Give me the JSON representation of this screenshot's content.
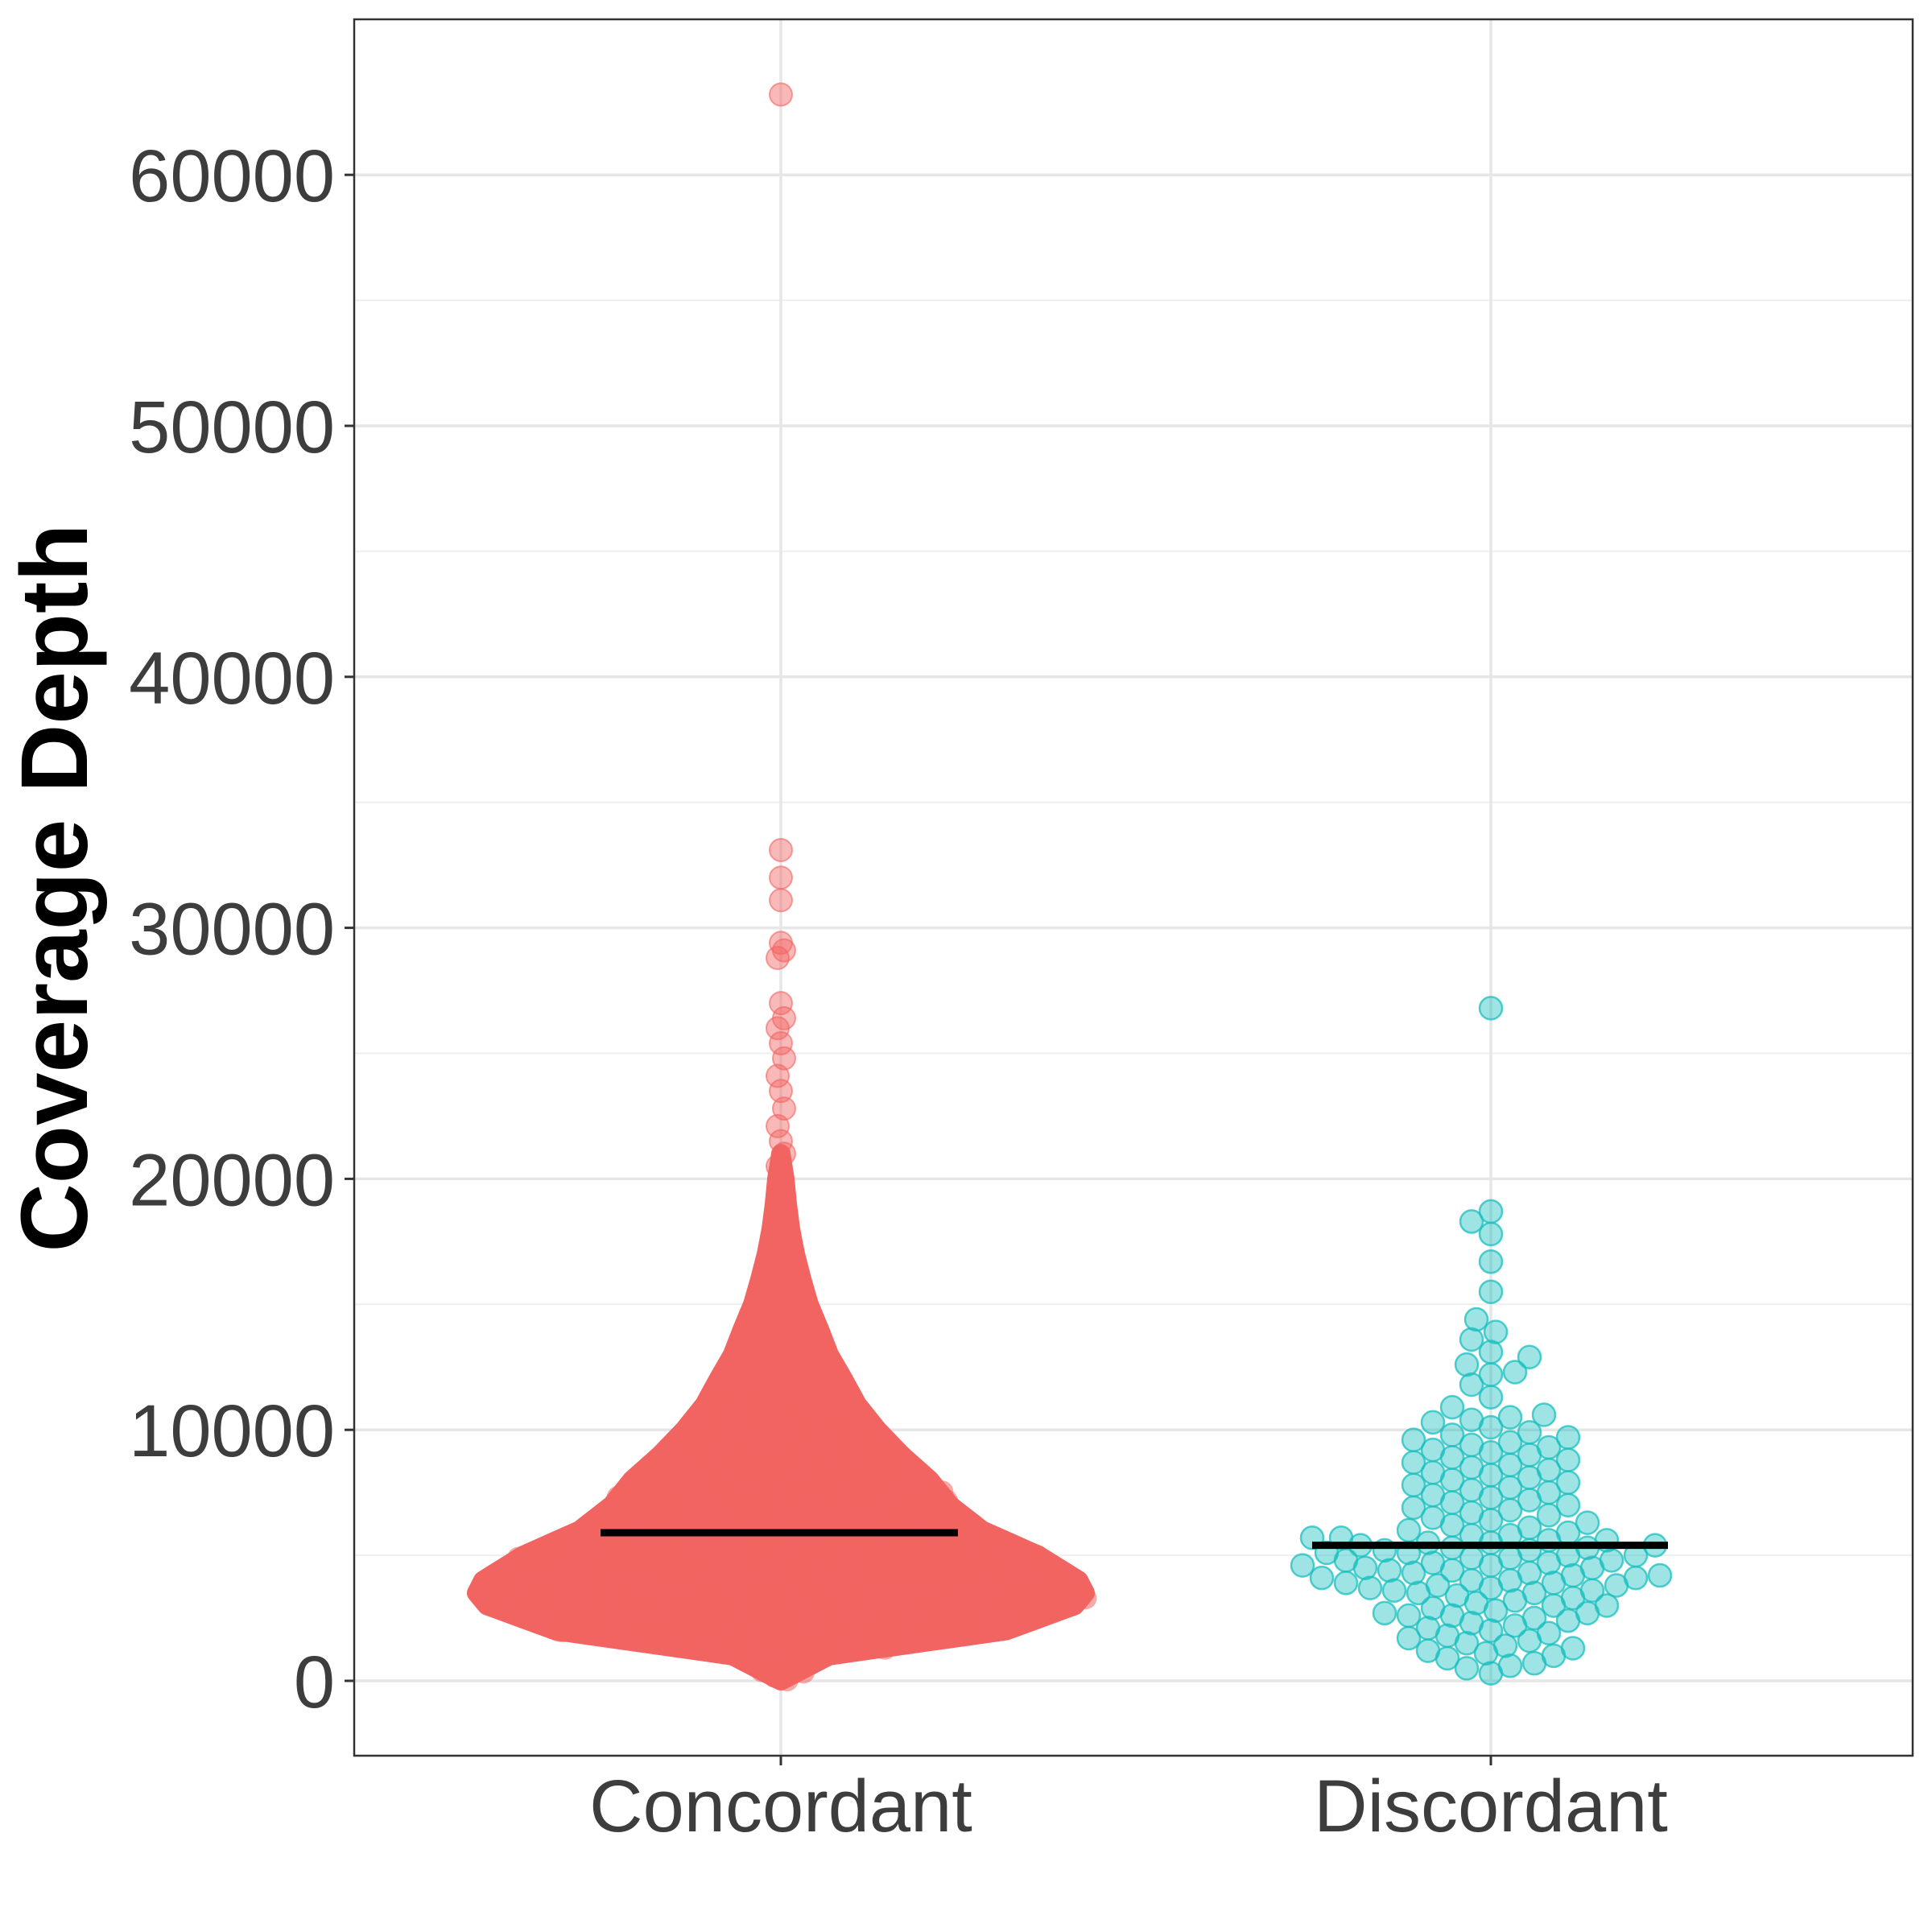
{
  "chart_data": {
    "type": "scatter",
    "subtype": "beeswarm",
    "title": "",
    "xlabel": "",
    "ylabel": "Coverage Depth",
    "ylim": [
      -3000,
      66000
    ],
    "yticks": [
      0,
      10000,
      20000,
      30000,
      40000,
      50000,
      60000
    ],
    "ytick_labels": [
      "0",
      "10000",
      "20000",
      "30000",
      "40000",
      "50000",
      "60000"
    ],
    "categories": [
      "Concordant",
      "Discordant"
    ],
    "grid": true,
    "legend": "none",
    "series": [
      {
        "category": "Concordant",
        "color": "#F26461",
        "median": 5900,
        "distribution": "dense swarm centered near 3500-6000, tapering upward to about 20000",
        "outliers": [
          63200,
          33100,
          32000,
          31100,
          29400,
          29100,
          28800,
          27000,
          26400,
          26000,
          25400,
          24800,
          24100,
          23500,
          22800,
          22100,
          21500,
          21000,
          20500,
          20000
        ]
      },
      {
        "category": "Discordant",
        "color": "#19BFBF",
        "median": 5400,
        "values": [
          26800,
          18700,
          18300,
          17800,
          16700,
          15500,
          14400,
          13900,
          13600,
          13100,
          12900,
          12600,
          12300,
          12200,
          11800,
          11300,
          10900,
          10600,
          10500,
          10400,
          10300,
          10100,
          9900,
          9800,
          9700,
          9600,
          9500,
          9400,
          9300,
          9200,
          9100,
          9000,
          8900,
          8800,
          8700,
          8600,
          8500,
          8400,
          8300,
          8200,
          8100,
          8000,
          7900,
          7800,
          7700,
          7600,
          7500,
          7400,
          7300,
          7200,
          7100,
          7000,
          6900,
          6800,
          6700,
          6600,
          6500,
          6400,
          6300,
          6200,
          6100,
          6000,
          5900,
          5800,
          5800,
          5700,
          5700,
          5600,
          5600,
          5500,
          5500,
          5400,
          5400,
          5300,
          5300,
          5200,
          5200,
          5100,
          5100,
          5000,
          5000,
          4900,
          4900,
          4800,
          4800,
          4700,
          4700,
          4600,
          4600,
          4500,
          4500,
          4400,
          4400,
          4300,
          4300,
          4200,
          4200,
          4100,
          4100,
          4000,
          4000,
          3900,
          3900,
          3800,
          3800,
          3700,
          3700,
          3600,
          3600,
          3500,
          3500,
          3400,
          3300,
          3200,
          3100,
          3000,
          3000,
          2900,
          2800,
          2700,
          2700,
          2600,
          2600,
          2500,
          2400,
          2300,
          2200,
          2100,
          2000,
          1900,
          1800,
          1700,
          1600,
          1500,
          1400,
          1300,
          1200,
          1100,
          1000,
          900,
          700,
          600,
          500,
          300
        ]
      }
    ]
  }
}
